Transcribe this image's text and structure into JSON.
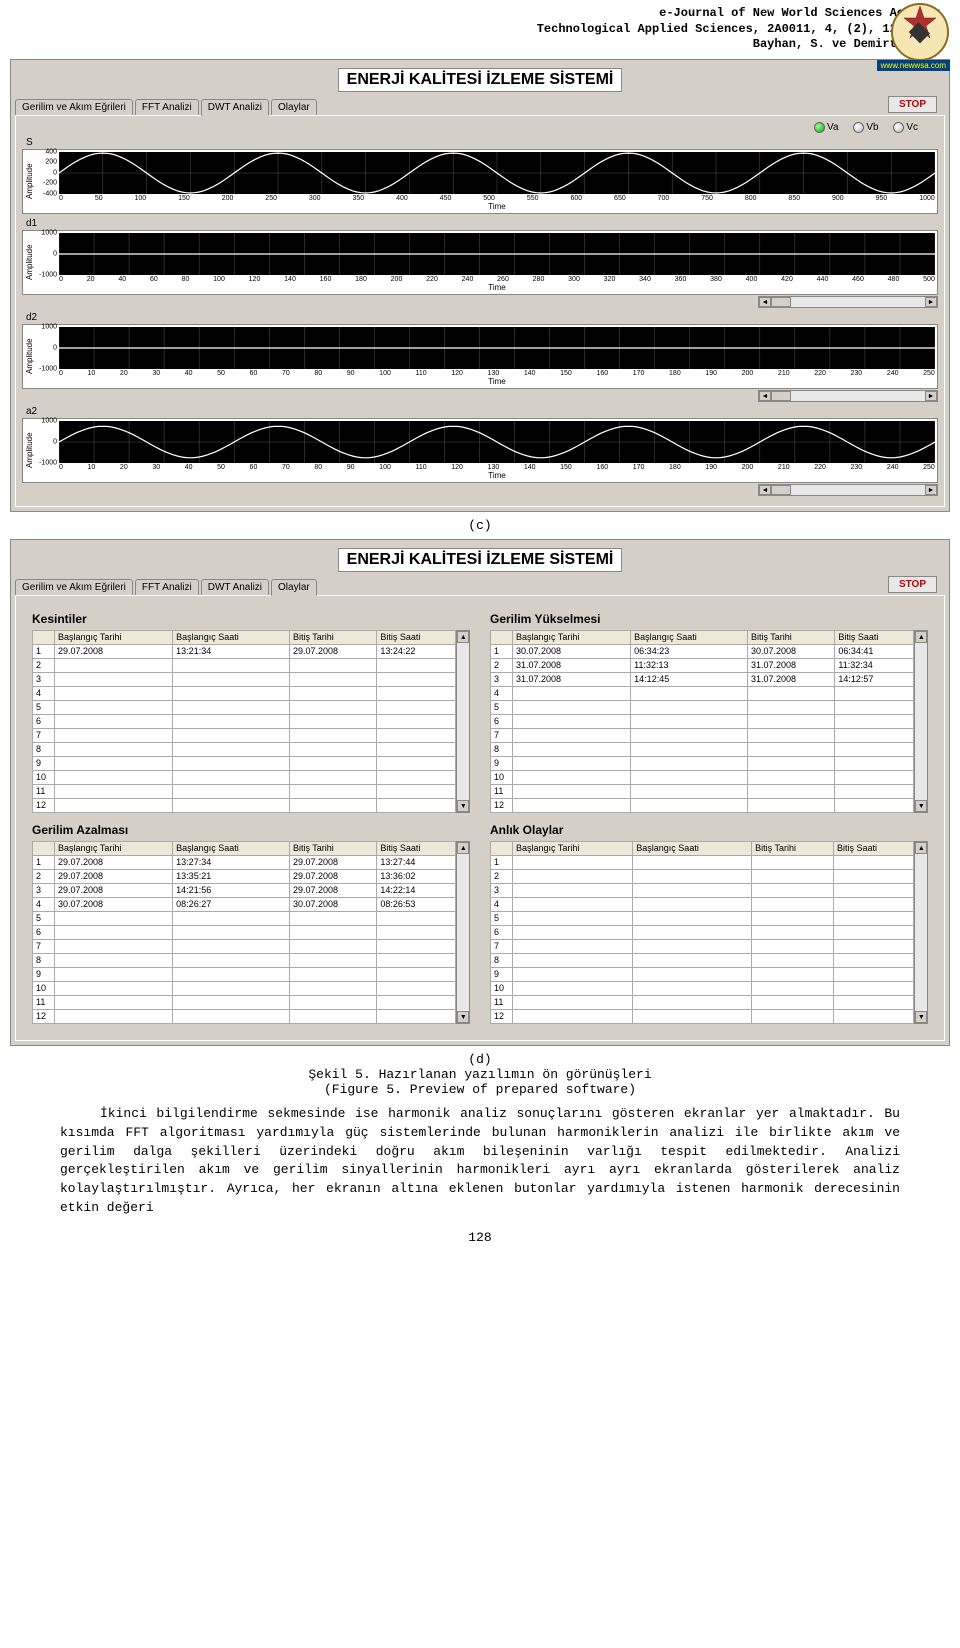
{
  "header": {
    "line1": "e-Journal of New World Sciences Academy",
    "line2": "Technological Applied Sciences, 2A0011, 4, (2), 120-135.",
    "line3": "Bayhan, S. ve Demirtaş, Ş.",
    "logo_url": "www.newwsa.com"
  },
  "app": {
    "title": "ENERJİ KALİTESİ İZLEME SİSTEMİ",
    "tabs": [
      {
        "label": "Gerilim ve Akım Eğrileri"
      },
      {
        "label": "FFT Analizi"
      },
      {
        "label": "DWT Analizi"
      },
      {
        "label": "Olaylar"
      }
    ],
    "stop_label": "STOP",
    "channels": [
      {
        "label": "Va",
        "on": true
      },
      {
        "label": "Vb",
        "on": false
      },
      {
        "label": "Vc",
        "on": false
      }
    ]
  },
  "charts_c": {
    "ylabel": "Amplitude",
    "xlabel": "Time",
    "panels": [
      {
        "name": "S",
        "type": "sine",
        "ymin": -400,
        "ymax": 400,
        "yticks": [
          "400",
          "200",
          "0",
          "-200",
          "-400"
        ],
        "xmin": 0,
        "xmax": 1000,
        "xticks": [
          "0",
          "50",
          "100",
          "150",
          "200",
          "250",
          "300",
          "350",
          "400",
          "450",
          "500",
          "550",
          "600",
          "650",
          "700",
          "750",
          "800",
          "850",
          "900",
          "950",
          "1000"
        ],
        "amp": 380,
        "cycles": 5,
        "line_color": "#ffffff",
        "grid_color": "#505050"
      },
      {
        "name": "d1",
        "type": "flat",
        "ymin": -1000,
        "ymax": 1000,
        "yticks": [
          "1000",
          "0",
          "-1000"
        ],
        "xmin": 0,
        "xmax": 500,
        "xticks": [
          "0",
          "20",
          "40",
          "60",
          "80",
          "100",
          "120",
          "140",
          "160",
          "180",
          "200",
          "220",
          "240",
          "260",
          "280",
          "300",
          "320",
          "340",
          "360",
          "380",
          "400",
          "420",
          "440",
          "460",
          "480",
          "500"
        ],
        "line_color": "#ffffff",
        "grid_color": "#505050"
      },
      {
        "name": "d2",
        "type": "flat",
        "ymin": -1000,
        "ymax": 1000,
        "yticks": [
          "1000",
          "0",
          "-1000"
        ],
        "xmin": 0,
        "xmax": 250,
        "xticks": [
          "0",
          "10",
          "20",
          "30",
          "40",
          "50",
          "60",
          "70",
          "80",
          "90",
          "100",
          "110",
          "120",
          "130",
          "140",
          "150",
          "160",
          "170",
          "180",
          "190",
          "200",
          "210",
          "220",
          "230",
          "240",
          "250"
        ],
        "line_color": "#ffffff",
        "grid_color": "#505050"
      },
      {
        "name": "a2",
        "type": "sine",
        "ymin": -1000,
        "ymax": 1000,
        "yticks": [
          "1000",
          "0",
          "-1000"
        ],
        "xmin": 0,
        "xmax": 250,
        "xticks": [
          "0",
          "10",
          "20",
          "30",
          "40",
          "50",
          "60",
          "70",
          "80",
          "90",
          "100",
          "110",
          "120",
          "130",
          "140",
          "150",
          "160",
          "170",
          "180",
          "190",
          "200",
          "210",
          "220",
          "230",
          "240",
          "250"
        ],
        "amp": 750,
        "cycles": 5,
        "line_color": "#ffffff",
        "grid_color": "#505050"
      }
    ]
  },
  "tables_d": {
    "columns": [
      "Başlangıç Tarihi",
      "Başlangıç Saati",
      "Bitiş Tarihi",
      "Bitiş Saati"
    ],
    "row_count": 12,
    "blocks": [
      {
        "title": "Kesintiler",
        "rows": [
          [
            "29.07.2008",
            "13:21:34",
            "29.07.2008",
            "13:24:22"
          ]
        ]
      },
      {
        "title": "Gerilim Yükselmesi",
        "rows": [
          [
            "30.07.2008",
            "06:34:23",
            "30.07.2008",
            "06:34:41"
          ],
          [
            "31.07.2008",
            "11:32:13",
            "31.07.2008",
            "11:32:34"
          ],
          [
            "31.07.2008",
            "14:12:45",
            "31.07.2008",
            "14:12:57"
          ]
        ]
      },
      {
        "title": "Gerilim Azalması",
        "rows": [
          [
            "29.07.2008",
            "13:27:34",
            "29.07.2008",
            "13:27:44"
          ],
          [
            "29.07.2008",
            "13:35:21",
            "29.07.2008",
            "13:36:02"
          ],
          [
            "29.07.2008",
            "14:21:56",
            "29.07.2008",
            "14:22:14"
          ],
          [
            "30.07.2008",
            "08:26:27",
            "30.07.2008",
            "08:26:53"
          ]
        ]
      },
      {
        "title": "Anlık Olaylar",
        "rows": []
      }
    ]
  },
  "captions": {
    "c": "(c)",
    "d": "(d)",
    "fig_tr": "Şekil 5. Hazırlanan yazılımın ön görünüşleri",
    "fig_en": "(Figure 5. Preview of prepared software)"
  },
  "body": "İkinci bilgilendirme sekmesinde ise harmonik analiz sonuçlarını gösteren ekranlar yer almaktadır. Bu kısımda FFT algoritması yardımıyla güç sistemlerinde bulunan harmoniklerin analizi ile birlikte akım ve gerilim dalga şekilleri üzerindeki doğru akım bileşeninin varlığı tespit edilmektedir. Analizi gerçekleştirilen akım ve gerilim sinyallerinin harmonikleri ayrı ayrı ekranlarda gösterilerek analiz kolaylaştırılmıştır. Ayrıca, her ekranın altına eklenen butonlar yardımıyla istenen harmonik derecesinin etkin değeri",
  "page_number": "128"
}
